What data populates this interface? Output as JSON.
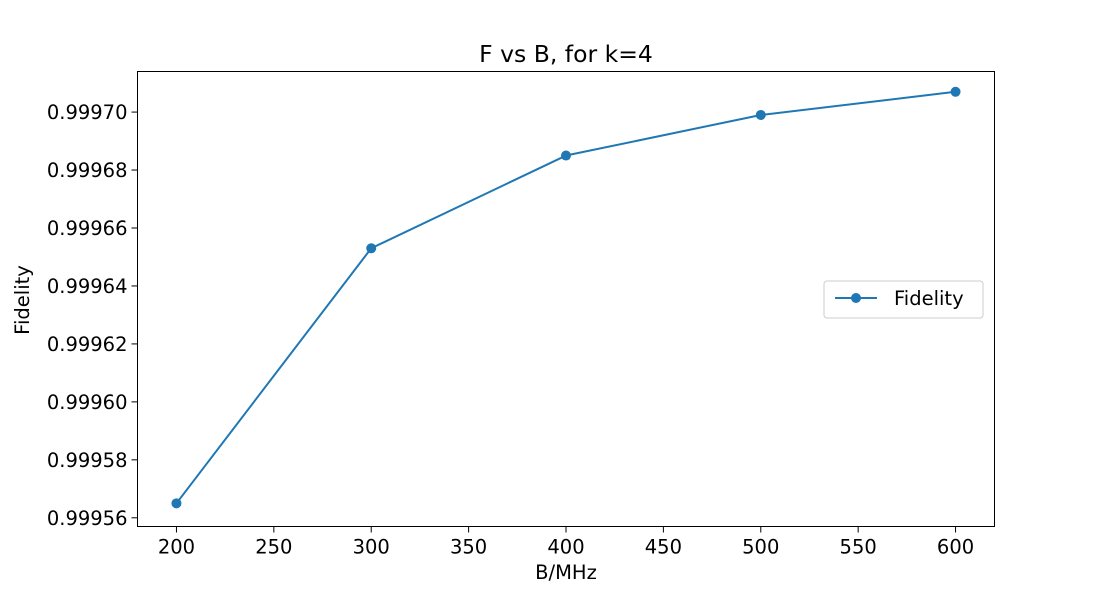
{
  "chart_data": {
    "type": "line",
    "title": "F vs B, for k=4",
    "xlabel": "B/MHz",
    "ylabel": "Fidelity",
    "x": [
      200,
      300,
      400,
      500,
      600
    ],
    "series": [
      {
        "name": "Fidelity",
        "values": [
          0.999565,
          0.999653,
          0.999685,
          0.999699,
          0.999707
        ],
        "color": "#1f77b4",
        "marker": "circle"
      }
    ],
    "xlim": [
      180,
      620
    ],
    "ylim": [
      0.999557,
      0.999714
    ],
    "xticks": [
      200,
      250,
      300,
      350,
      400,
      450,
      500,
      550,
      600
    ],
    "xtick_labels": [
      "200",
      "250",
      "300",
      "350",
      "400",
      "450",
      "500",
      "550",
      "600"
    ],
    "yticks": [
      0.99956,
      0.99958,
      0.9996,
      0.99962,
      0.99964,
      0.99966,
      0.99968,
      0.9997
    ],
    "ytick_labels": [
      "0.99956",
      "0.99958",
      "0.99960",
      "0.99962",
      "0.99964",
      "0.99966",
      "0.99968",
      "0.99970"
    ],
    "grid": false,
    "legend_position": "center-right"
  }
}
